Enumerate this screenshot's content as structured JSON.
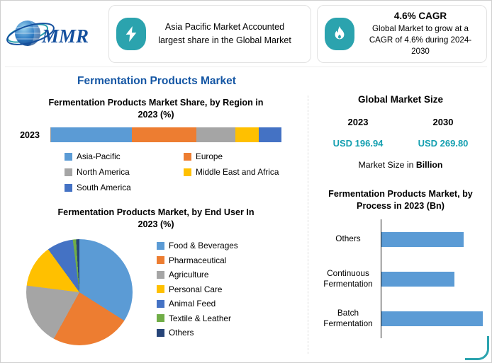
{
  "header": {
    "logo_text": "MMR",
    "highlight": "Asia Pacific Market Accounted largest share in the Global Market",
    "cagr_title": "4.6% CAGR",
    "cagr_text": "Global Market to grow at a CAGR of 4.6% during 2024-2030"
  },
  "title": "Fermentation Products Market",
  "colors": {
    "accent_teal": "#2BA3AE",
    "title_blue": "#1456A4",
    "value_teal": "#149FB0",
    "bar_blue": "#5B9BD5"
  },
  "market_size": {
    "title": "Global Market Size",
    "years": [
      "2023",
      "2030"
    ],
    "values": [
      "USD 196.94",
      "USD 269.80"
    ],
    "note_prefix": "Market Size in ",
    "note_bold": "Billion"
  },
  "chart_data": [
    {
      "type": "bar",
      "variant": "stacked-horizontal",
      "title": "Fermentation Products Market Share, by Region in 2023 (%)",
      "categories": [
        "2023"
      ],
      "xlim": [
        0,
        100
      ],
      "legend_position": "bottom",
      "series": [
        {
          "name": "Asia-Pacific",
          "color": "#5B9BD5",
          "values": [
            35
          ]
        },
        {
          "name": "Europe",
          "color": "#ED7D31",
          "values": [
            28
          ]
        },
        {
          "name": "North America",
          "color": "#A5A5A5",
          "values": [
            17
          ]
        },
        {
          "name": "Middle East and Africa",
          "color": "#FFC000",
          "values": [
            10
          ]
        },
        {
          "name": "South America",
          "color": "#4472C4",
          "values": [
            10
          ]
        }
      ]
    },
    {
      "type": "pie",
      "title": "Fermentation Products Market, by End User In 2023 (%)",
      "labels": [
        "Food & Beverages",
        "Pharmaceutical",
        "Agriculture",
        "Personal Care",
        "Animal Feed",
        "Textile & Leather",
        "Others"
      ],
      "values": [
        34,
        24,
        19,
        13,
        8,
        1,
        1
      ],
      "colors": [
        "#5B9BD5",
        "#ED7D31",
        "#A5A5A5",
        "#FFC000",
        "#4472C4",
        "#70AD47",
        "#264478"
      ],
      "legend_position": "right"
    },
    {
      "type": "bar",
      "variant": "horizontal",
      "title": "Fermentation Products Market, by Process in 2023 (Bn)",
      "categories": [
        "Others",
        "Continuous Fermentation",
        "Batch Fermentation"
      ],
      "values": [
        63,
        56,
        78
      ],
      "xlim": [
        0,
        80
      ],
      "color": "#5B9BD5",
      "grid": false
    }
  ]
}
